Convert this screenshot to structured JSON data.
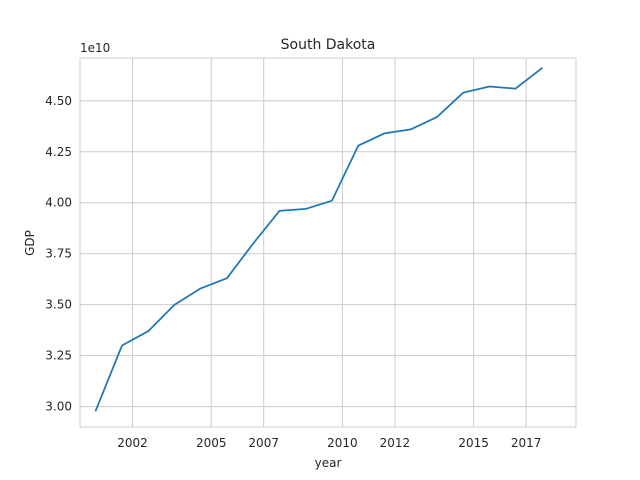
{
  "chart_data": {
    "type": "line",
    "title": "South Dakota",
    "xlabel": "year",
    "ylabel": "GDP",
    "y_offset_label": "1e10",
    "x_ticks": [
      "2002",
      "2005",
      "2007",
      "2010",
      "2012",
      "2015",
      "2017"
    ],
    "y_ticks": [
      "3.00",
      "3.25",
      "3.50",
      "3.75",
      "4.00",
      "4.25",
      "4.50"
    ],
    "xlim": [
      2000.0,
      2018.9
    ],
    "ylim": [
      2.9,
      4.71
    ],
    "grid": true,
    "series": [
      {
        "color": "#1f77b4",
        "x": [
          2000.6,
          2001.6,
          2002.6,
          2003.6,
          2004.6,
          2005.6,
          2006.6,
          2007.6,
          2008.6,
          2009.6,
          2010.6,
          2011.6,
          2012.6,
          2013.6,
          2014.6,
          2015.6,
          2016.6,
          2017.6
        ],
        "y": [
          2.98,
          3.3,
          3.37,
          3.5,
          3.58,
          3.63,
          3.8,
          3.96,
          3.97,
          4.01,
          4.28,
          4.34,
          4.36,
          4.42,
          4.54,
          4.57,
          4.56,
          4.66
        ]
      }
    ]
  }
}
